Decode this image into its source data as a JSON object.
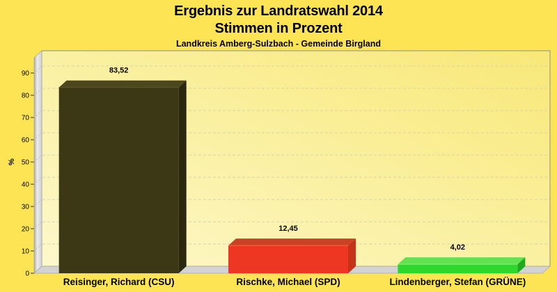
{
  "title": {
    "line1": "Ergebnis zur Landratswahl 2014",
    "line2": "Stimmen in Prozent",
    "subtitle": "Landkreis Amberg-Sulzbach - Gemeinde Birgland"
  },
  "chart_data": {
    "type": "bar",
    "style": "3d-column",
    "title": "Ergebnis zur Landratswahl 2014 — Stimmen in Prozent",
    "caption": "Landkreis Amberg-Sulzbach - Gemeinde Birgland",
    "categories": [
      "Reisinger, Richard (CSU)",
      "Rischke, Michael (SPD)",
      "Lindenberger, Stefan (GRÜNE)"
    ],
    "values": [
      83.52,
      12.45,
      4.02
    ],
    "value_labels": [
      "83,52",
      "12,45",
      "4,02"
    ],
    "xlabel": "",
    "ylabel": "%",
    "yticks": [
      0,
      10,
      20,
      30,
      40,
      50,
      60,
      70,
      80,
      90
    ],
    "ylim": [
      0,
      97
    ],
    "grid": true,
    "grid_style": "dashed",
    "legend": false,
    "bar_colors": [
      {
        "party": "CSU",
        "front": "#3c3815",
        "top": "#4c471e",
        "side": "#2b280f",
        "edge": "#5d5728"
      },
      {
        "party": "SPD",
        "front": "#ee3723",
        "top": "#c94227",
        "side": "#c43218",
        "edge": "#ff6a40"
      },
      {
        "party": "GRÜNE",
        "front": "#2fd62c",
        "top": "#62e151",
        "side": "#20a81e",
        "edge": "#8cf07a"
      }
    ]
  },
  "colors": {
    "page_bg": "#fce455",
    "plot_top_right": "#f8e878",
    "plot_bottom_left": "#fdf8cb",
    "plot_border": "#8f8f8f",
    "grid": "#d5d2b8",
    "wall_dark": "#a8a8a8",
    "wall_light": "#ececec",
    "wall_mid": "#d0d0d0",
    "floor": "#d3d3d3",
    "floor_edge": "#a8a8a8",
    "tick": "#333333",
    "text": "#000000"
  }
}
